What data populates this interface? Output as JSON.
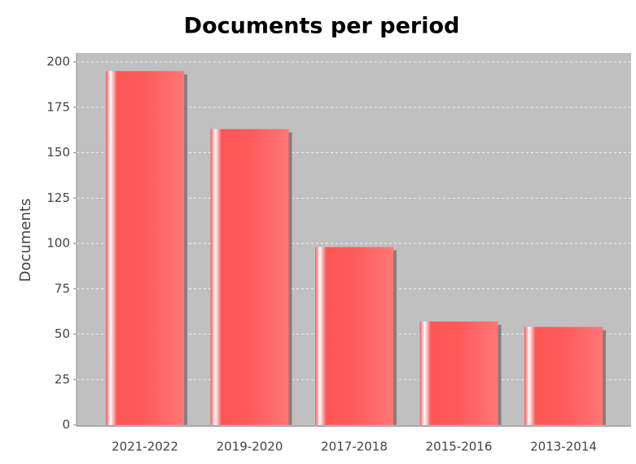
{
  "chart_data": {
    "type": "bar",
    "title": "Documents per period",
    "y_label": "Documents",
    "categories": [
      "2021-2022",
      "2019-2020",
      "2017-2018",
      "2015-2016",
      "2013-2014"
    ],
    "values": [
      195,
      163,
      98,
      57,
      54
    ],
    "color": "#ff5555",
    "ylim": [
      0,
      205
    ],
    "yticks": [
      0,
      25,
      50,
      75,
      100,
      125,
      150,
      175,
      200
    ],
    "grid": true
  }
}
